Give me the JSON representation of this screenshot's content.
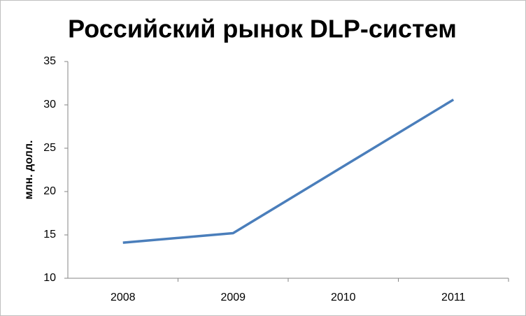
{
  "chart_data": {
    "type": "line",
    "title": "Российский рынок DLP-систем",
    "y_label": "млн. долл.",
    "categories": [
      "2008",
      "2009",
      "2010",
      "2011"
    ],
    "series": [
      {
        "name": "Российский рынок DLP-систем",
        "color": "#4a7ebb",
        "values": [
          14.1,
          15.2,
          22.9,
          30.6
        ]
      }
    ],
    "ylim": [
      10,
      35
    ],
    "yticks": [
      10,
      15,
      20,
      25,
      30,
      35
    ],
    "grid": false
  }
}
